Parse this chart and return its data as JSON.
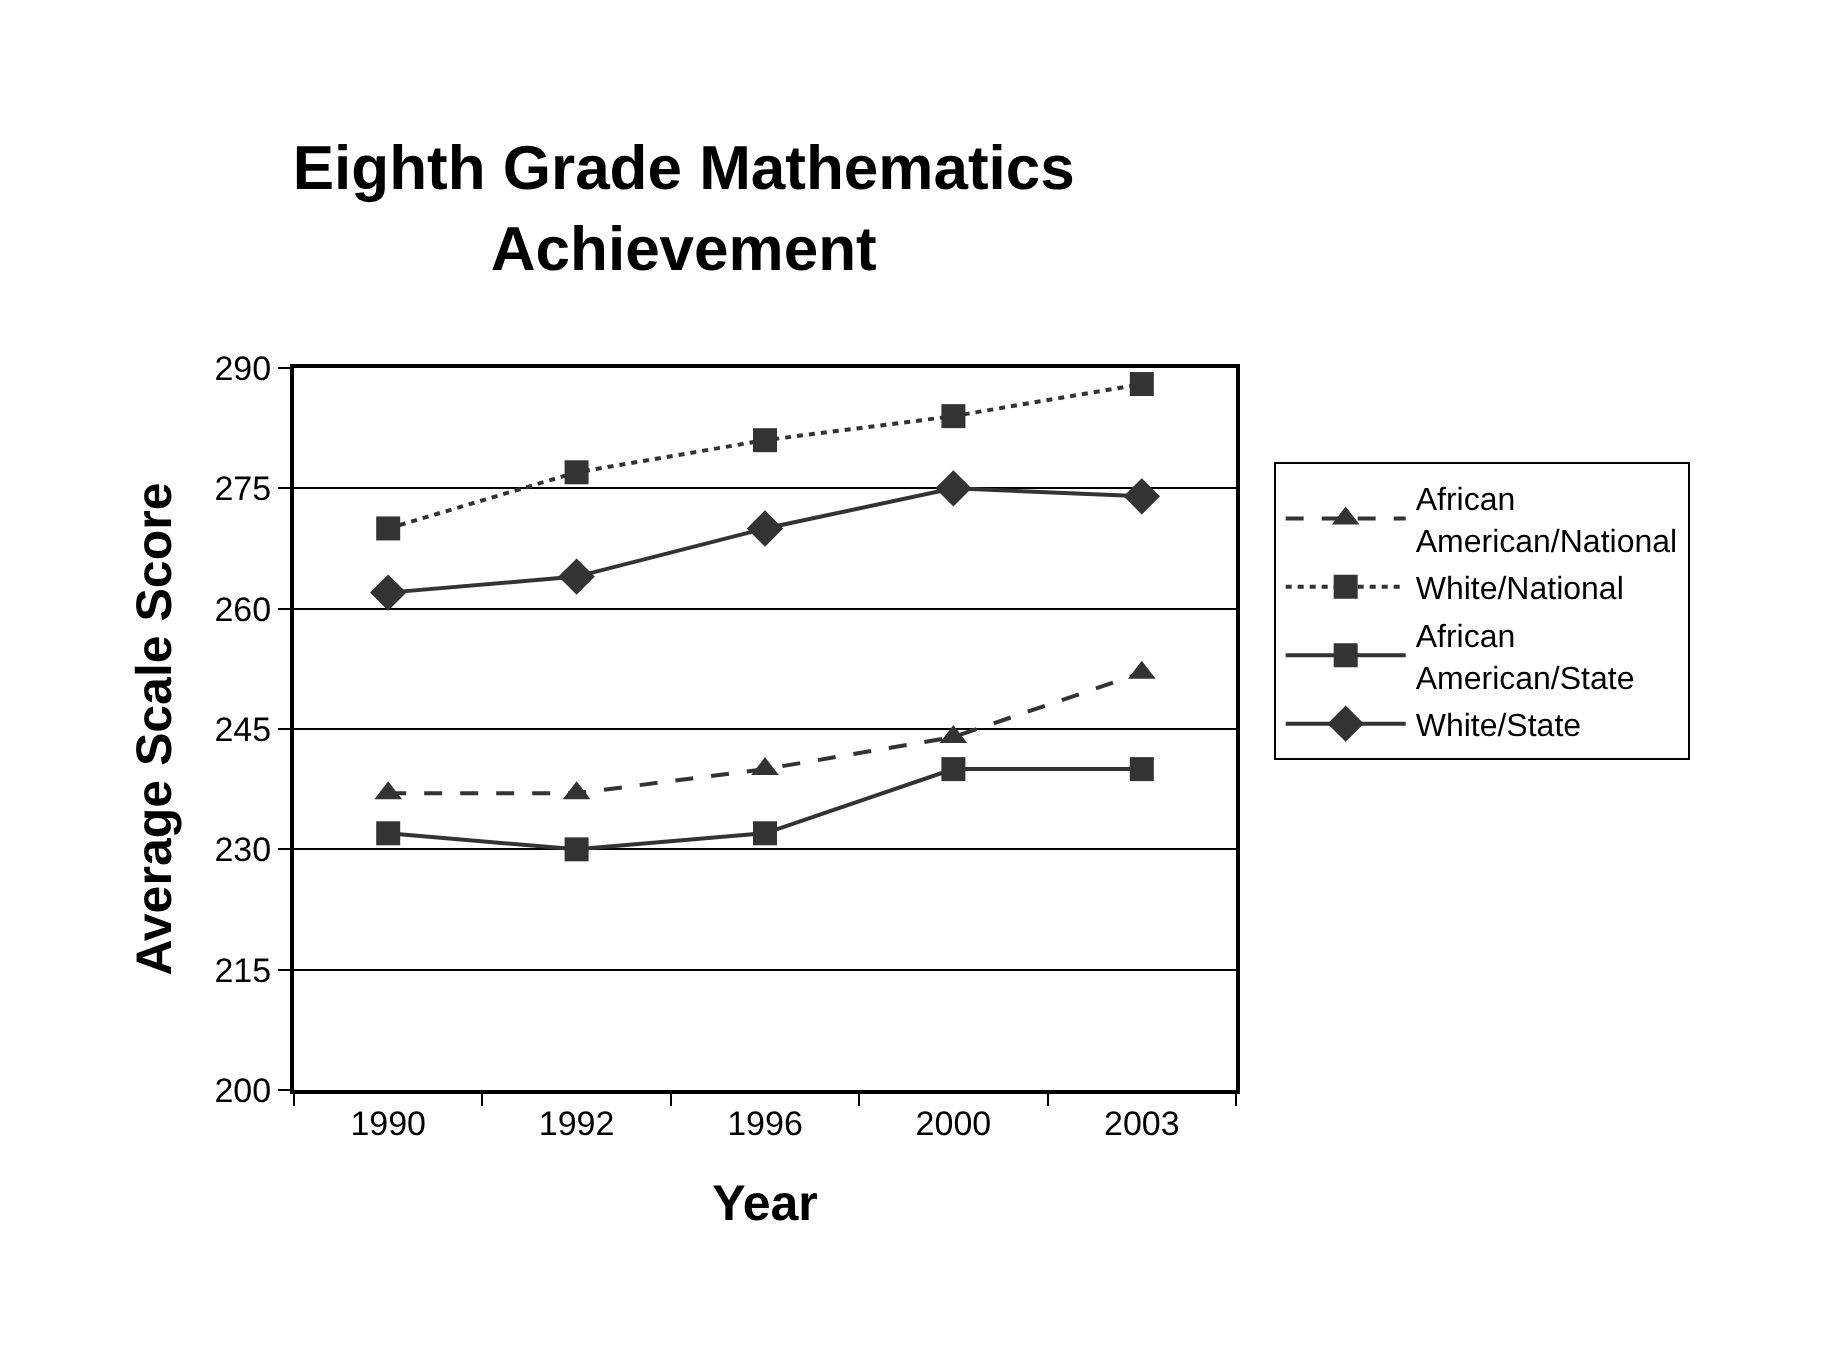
{
  "chart_data": {
    "type": "line",
    "title": "Eighth Grade Mathematics Achievement",
    "xlabel": "Year",
    "ylabel": "Average Scale Score",
    "categories": [
      "1990",
      "1992",
      "1996",
      "2000",
      "2003"
    ],
    "series": [
      {
        "name": "African American/National",
        "color": "#333333",
        "marker": "triangle",
        "line_style": "dashed",
        "values": [
          237,
          237,
          240,
          244,
          252
        ]
      },
      {
        "name": "White/National",
        "color": "#333333",
        "marker": "square",
        "line_style": "dotted",
        "values": [
          270,
          277,
          281,
          284,
          288
        ]
      },
      {
        "name": "African American/State",
        "color": "#333333",
        "marker": "square",
        "line_style": "solid",
        "values": [
          232,
          230,
          232,
          240,
          240
        ]
      },
      {
        "name": "White/State",
        "color": "#333333",
        "marker": "diamond",
        "line_style": "solid",
        "values": [
          262,
          264,
          270,
          275,
          274
        ]
      }
    ],
    "ylim": [
      200,
      290
    ],
    "yticks": [
      200,
      215,
      230,
      245,
      260,
      275,
      290
    ],
    "grid": "y",
    "legend": "right"
  }
}
